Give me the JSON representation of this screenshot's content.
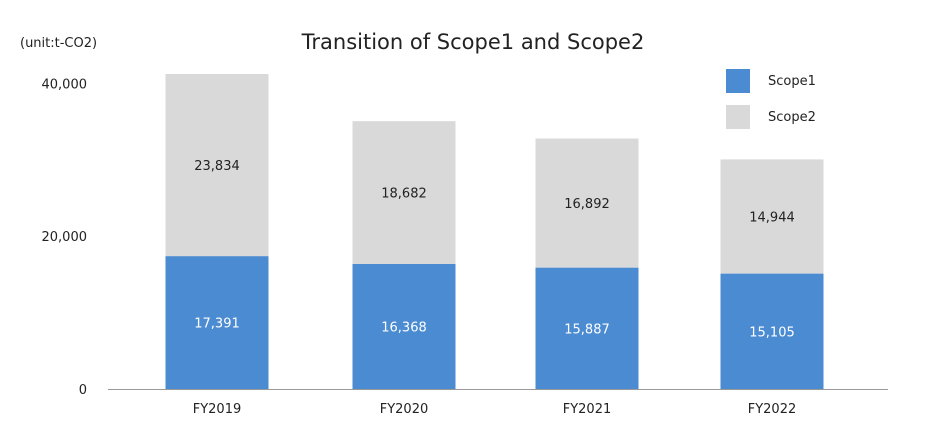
{
  "chart_data": {
    "type": "bar",
    "stacked": true,
    "title": "Transition of Scope1 and Scope2",
    "unit_label": "(unit:t-CO2)",
    "categories": [
      "FY2019",
      "FY2020",
      "FY2021",
      "FY2022"
    ],
    "series": [
      {
        "name": "Scope1",
        "values": [
          17391,
          16368,
          15887,
          15105
        ],
        "value_labels": [
          "17,391",
          "16,368",
          "15,887",
          "15,105"
        ],
        "color": "#4b8bd2",
        "label_color": "#ffffff"
      },
      {
        "name": "Scope2",
        "values": [
          23834,
          18682,
          16892,
          14944
        ],
        "value_labels": [
          "23,834",
          "18,682",
          "16,892",
          "14,944"
        ],
        "color": "#d9d9d9",
        "label_color": "#222222"
      }
    ],
    "yticks": [
      0,
      20000,
      40000
    ],
    "ytick_labels": [
      "0",
      "20,000",
      "40,000"
    ],
    "ylim": [
      0,
      41225
    ],
    "grid": false,
    "legend_position": "top-right"
  }
}
